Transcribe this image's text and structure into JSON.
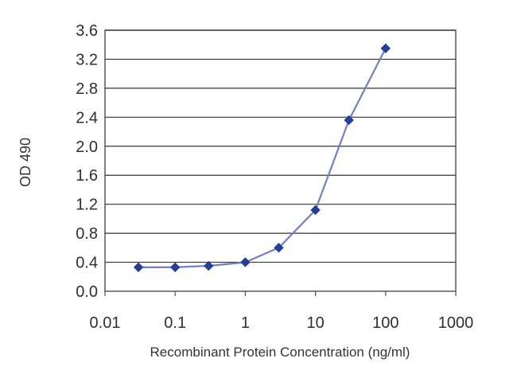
{
  "chart_data": {
    "type": "line",
    "title": "",
    "xlabel": "Recombinant Protein Concentration (ng/ml)",
    "ylabel": "OD 490",
    "x_scale": "log",
    "xlim": [
      0.01,
      1000
    ],
    "ylim": [
      0.0,
      3.6
    ],
    "grid": {
      "x": false,
      "y": true
    },
    "x_ticks": [
      {
        "value": 0.01,
        "label": "0.01"
      },
      {
        "value": 0.1,
        "label": "0.1"
      },
      {
        "value": 1,
        "label": "1"
      },
      {
        "value": 10,
        "label": "10"
      },
      {
        "value": 100,
        "label": "100"
      },
      {
        "value": 1000,
        "label": "1000"
      }
    ],
    "y_ticks": [
      {
        "value": 0.0,
        "label": "0.0"
      },
      {
        "value": 0.4,
        "label": "0.4"
      },
      {
        "value": 0.8,
        "label": "0.8"
      },
      {
        "value": 1.2,
        "label": "1.2"
      },
      {
        "value": 1.6,
        "label": "1.6"
      },
      {
        "value": 2.0,
        "label": "2.0"
      },
      {
        "value": 2.4,
        "label": "2.4"
      },
      {
        "value": 2.8,
        "label": "2.8"
      },
      {
        "value": 3.2,
        "label": "3.2"
      },
      {
        "value": 3.6,
        "label": "3.6"
      }
    ],
    "series": [
      {
        "color": "#233f9c",
        "line_color": "#6f7ed2",
        "points": [
          {
            "x": 0.03,
            "y": 0.33
          },
          {
            "x": 0.1,
            "y": 0.33
          },
          {
            "x": 0.3,
            "y": 0.35
          },
          {
            "x": 1,
            "y": 0.4
          },
          {
            "x": 3,
            "y": 0.6
          },
          {
            "x": 10,
            "y": 1.12
          },
          {
            "x": 30,
            "y": 2.36
          },
          {
            "x": 100,
            "y": 3.35
          }
        ]
      }
    ]
  }
}
